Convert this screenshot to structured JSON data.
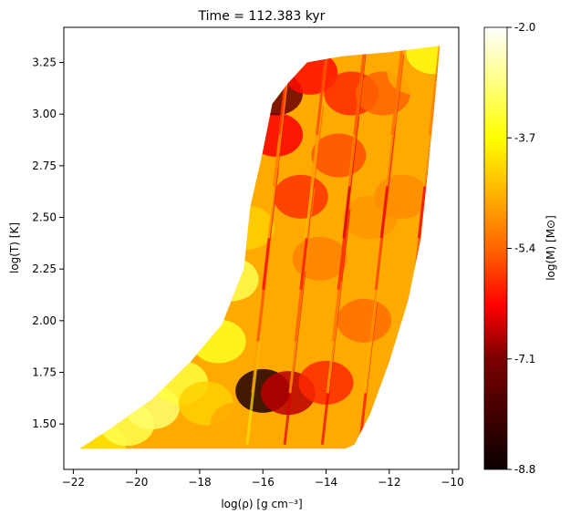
{
  "chart_data": {
    "type": "scatter",
    "title": "Time = 112.383 kyr",
    "xlabel": "log(ρ) [g cm⁻³]",
    "ylabel": "log(T) [K]",
    "xlim": [
      -22.3,
      -9.8
    ],
    "ylim": [
      1.28,
      3.42
    ],
    "xticks": [
      -22,
      -20,
      -18,
      -16,
      -14,
      -12,
      -10
    ],
    "xtick_labels": [
      "−22",
      "−20",
      "−18",
      "−16",
      "−14",
      "−12",
      "−10"
    ],
    "yticks": [
      1.5,
      1.75,
      2.0,
      2.25,
      2.5,
      2.75,
      3.0,
      3.25
    ],
    "ytick_labels": [
      "1.50",
      "1.75",
      "2.00",
      "2.25",
      "2.50",
      "2.75",
      "3.00",
      "3.25"
    ],
    "grid": false,
    "colormap": "hot",
    "colorbar": {
      "label": "log(M) [M⊙]",
      "range": [
        -8.8,
        -2.0
      ],
      "ticks": [
        -8.8,
        -7.1,
        -5.4,
        -3.7,
        -2.0
      ],
      "tick_labels": [
        "-8.8",
        "-7.1",
        "-5.4",
        "-3.7",
        "-2.0"
      ]
    },
    "envelope": {
      "description_of_region": "filled particle cloud",
      "upper_boundary": [
        {
          "x": -21.8,
          "y": 1.38
        },
        {
          "x": -20.8,
          "y": 1.48
        },
        {
          "x": -19.5,
          "y": 1.62
        },
        {
          "x": -18.3,
          "y": 1.8
        },
        {
          "x": -17.3,
          "y": 1.98
        },
        {
          "x": -16.6,
          "y": 2.25
        },
        {
          "x": -16.4,
          "y": 2.55
        },
        {
          "x": -16.0,
          "y": 2.82
        },
        {
          "x": -15.7,
          "y": 3.05
        },
        {
          "x": -15.2,
          "y": 3.15
        },
        {
          "x": -14.6,
          "y": 3.25
        },
        {
          "x": -13.5,
          "y": 3.28
        },
        {
          "x": -12.0,
          "y": 3.3
        },
        {
          "x": -10.4,
          "y": 3.33
        }
      ],
      "right_boundary": [
        {
          "x": -10.4,
          "y": 3.33
        },
        {
          "x": -10.6,
          "y": 3.0
        },
        {
          "x": -10.8,
          "y": 2.7
        },
        {
          "x": -11.0,
          "y": 2.4
        },
        {
          "x": -11.4,
          "y": 2.1
        },
        {
          "x": -12.0,
          "y": 1.8
        },
        {
          "x": -12.6,
          "y": 1.55
        },
        {
          "x": -13.1,
          "y": 1.4
        },
        {
          "x": -13.4,
          "y": 1.38
        }
      ],
      "floor_y": 1.38
    },
    "color_zones": [
      {
        "x": -21.2,
        "y": 1.4,
        "log_m": -4.0
      },
      {
        "x": -20.3,
        "y": 1.5,
        "log_m": -3.2
      },
      {
        "x": -19.5,
        "y": 1.58,
        "log_m": -3.0
      },
      {
        "x": -18.6,
        "y": 1.7,
        "log_m": -3.3
      },
      {
        "x": -17.8,
        "y": 1.6,
        "log_m": -4.2
      },
      {
        "x": -17.4,
        "y": 1.9,
        "log_m": -3.5
      },
      {
        "x": -17.0,
        "y": 2.2,
        "log_m": -3.2
      },
      {
        "x": -16.8,
        "y": 1.5,
        "log_m": -4.6
      },
      {
        "x": -16.5,
        "y": 2.45,
        "log_m": -4.2
      },
      {
        "x": -16.0,
        "y": 1.66,
        "log_m": -8.5
      },
      {
        "x": -15.6,
        "y": 2.9,
        "log_m": -6.4
      },
      {
        "x": -15.6,
        "y": 3.1,
        "log_m": -7.8
      },
      {
        "x": -15.2,
        "y": 1.65,
        "log_m": -7.0
      },
      {
        "x": -15.0,
        "y": 2.0,
        "log_m": -4.6
      },
      {
        "x": -14.8,
        "y": 2.6,
        "log_m": -5.8
      },
      {
        "x": -14.5,
        "y": 3.2,
        "log_m": -6.2
      },
      {
        "x": -14.2,
        "y": 2.3,
        "log_m": -5.0
      },
      {
        "x": -14.0,
        "y": 1.7,
        "log_m": -5.9
      },
      {
        "x": -13.6,
        "y": 2.8,
        "log_m": -5.5
      },
      {
        "x": -13.2,
        "y": 3.1,
        "log_m": -5.9
      },
      {
        "x": -12.8,
        "y": 2.0,
        "log_m": -5.2
      },
      {
        "x": -12.6,
        "y": 2.5,
        "log_m": -4.8
      },
      {
        "x": -12.2,
        "y": 3.1,
        "log_m": -5.3
      },
      {
        "x": -11.6,
        "y": 2.6,
        "log_m": -4.9
      },
      {
        "x": -11.2,
        "y": 3.2,
        "log_m": -4.6
      },
      {
        "x": -10.6,
        "y": 3.3,
        "log_m": -3.6
      }
    ]
  }
}
